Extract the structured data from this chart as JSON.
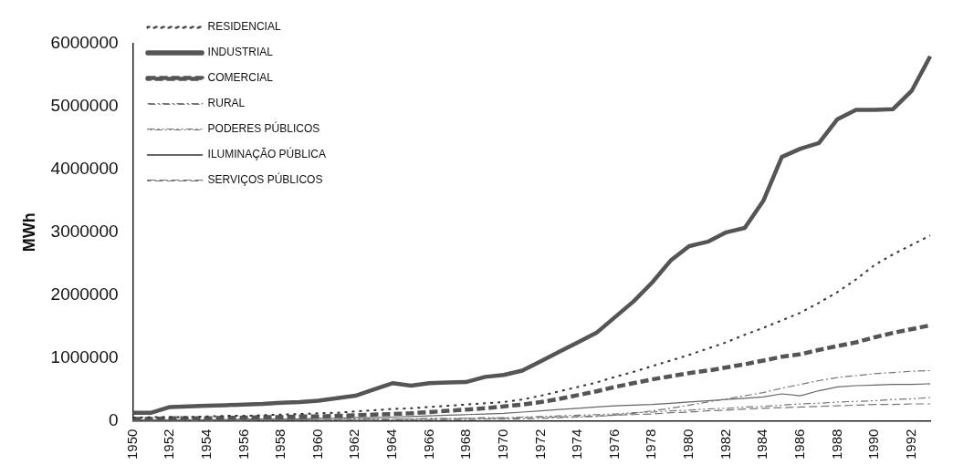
{
  "chart_data": {
    "type": "line",
    "ylabel": "MWh",
    "categories": [
      "1950",
      null,
      "1952",
      null,
      "1954",
      null,
      "1956",
      null,
      "1958",
      null,
      "1960",
      null,
      "1962",
      null,
      "1964",
      null,
      "1966",
      null,
      "1968",
      null,
      "1970",
      null,
      "1972",
      null,
      "1974",
      null,
      "1976",
      null,
      "1978",
      null,
      "1980",
      null,
      "1982",
      null,
      "1984",
      null,
      "1986",
      null,
      "1988",
      null,
      "1990",
      null,
      "1992",
      null
    ],
    "ylim": [
      0,
      6000000
    ],
    "yticks": [
      0,
      1000000,
      2000000,
      3000000,
      4000000,
      5000000,
      6000000
    ],
    "grid": false,
    "legend": "top left",
    "marker": "none",
    "series": [
      {
        "name": "RESIDENCIAL",
        "color": "#333333",
        "line_style": "dotted",
        "values": [
          50000,
          60000,
          60000,
          60000,
          70000,
          80000,
          80000,
          90000,
          100000,
          110000,
          120000,
          130000,
          150000,
          170000,
          190000,
          200000,
          220000,
          240000,
          260000,
          280000,
          300000,
          340000,
          400000,
          470000,
          540000,
          610000,
          700000,
          780000,
          870000,
          960000,
          1050000,
          1150000,
          1250000,
          1370000,
          1480000,
          1600000,
          1720000,
          1880000,
          2050000,
          2250000,
          2480000,
          2650000,
          2800000,
          2950000
        ]
      },
      {
        "name": "INDUSTRIAL",
        "color": "#555555",
        "line_style": "solid",
        "values": [
          130000,
          130000,
          220000,
          230000,
          240000,
          250000,
          260000,
          270000,
          290000,
          300000,
          320000,
          360000,
          400000,
          500000,
          600000,
          560000,
          600000,
          610000,
          620000,
          700000,
          730000,
          800000,
          950000,
          1100000,
          1250000,
          1400000,
          1650000,
          1900000,
          2200000,
          2550000,
          2780000,
          2850000,
          3000000,
          3070000,
          3500000,
          4200000,
          4330000,
          4420000,
          4800000,
          4950000,
          4950000,
          4960000,
          5250000,
          5800000
        ]
      },
      {
        "name": "COMERCIAL",
        "color": "#555555",
        "line_style": "dashed",
        "values": [
          30000,
          30000,
          40000,
          40000,
          40000,
          50000,
          50000,
          60000,
          60000,
          70000,
          70000,
          80000,
          90000,
          100000,
          110000,
          120000,
          140000,
          160000,
          180000,
          200000,
          230000,
          260000,
          300000,
          350000,
          410000,
          470000,
          540000,
          600000,
          660000,
          710000,
          760000,
          800000,
          850000,
          900000,
          960000,
          1020000,
          1060000,
          1130000,
          1190000,
          1250000,
          1330000,
          1400000,
          1460000,
          1520000
        ]
      },
      {
        "name": "RURAL",
        "color": "#777777",
        "line_style": "dashdot",
        "values": [
          10000,
          10000,
          10000,
          10000,
          10000,
          10000,
          10000,
          10000,
          10000,
          10000,
          10000,
          10000,
          10000,
          10000,
          20000,
          20000,
          20000,
          20000,
          20000,
          30000,
          30000,
          30000,
          40000,
          50000,
          60000,
          70000,
          90000,
          120000,
          160000,
          200000,
          250000,
          300000,
          350000,
          400000,
          450000,
          520000,
          580000,
          640000,
          690000,
          720000,
          750000,
          770000,
          790000,
          800000
        ]
      },
      {
        "name": "PODERES PÚBLICOS",
        "color": "#777777",
        "line_style": "dashdotdot",
        "values": [
          10000,
          10000,
          10000,
          10000,
          10000,
          20000,
          20000,
          20000,
          20000,
          20000,
          20000,
          20000,
          30000,
          30000,
          30000,
          30000,
          40000,
          40000,
          40000,
          50000,
          50000,
          60000,
          70000,
          80000,
          90000,
          100000,
          110000,
          130000,
          140000,
          160000,
          170000,
          190000,
          200000,
          220000,
          230000,
          250000,
          270000,
          280000,
          300000,
          310000,
          320000,
          340000,
          350000,
          370000
        ]
      },
      {
        "name": "ILUMINAÇÃO PÚBLICA",
        "color": "#666666",
        "line_style": "solid",
        "values": [
          20000,
          20000,
          20000,
          20000,
          20000,
          20000,
          30000,
          30000,
          30000,
          30000,
          40000,
          40000,
          50000,
          50000,
          60000,
          70000,
          80000,
          90000,
          100000,
          110000,
          120000,
          140000,
          160000,
          180000,
          200000,
          220000,
          240000,
          250000,
          260000,
          280000,
          300000,
          320000,
          340000,
          360000,
          380000,
          430000,
          400000,
          480000,
          540000,
          560000,
          570000,
          580000,
          580000,
          590000
        ]
      },
      {
        "name": "SERVIÇOS PÚBLICOS",
        "color": "#777777",
        "line_style": "dashed",
        "values": [
          10000,
          10000,
          10000,
          10000,
          10000,
          10000,
          10000,
          20000,
          20000,
          20000,
          20000,
          20000,
          20000,
          20000,
          30000,
          30000,
          30000,
          30000,
          40000,
          40000,
          40000,
          50000,
          60000,
          60000,
          70000,
          80000,
          90000,
          100000,
          110000,
          130000,
          140000,
          160000,
          170000,
          190000,
          200000,
          210000,
          220000,
          230000,
          240000,
          250000,
          260000,
          260000,
          270000,
          270000
        ]
      }
    ]
  }
}
